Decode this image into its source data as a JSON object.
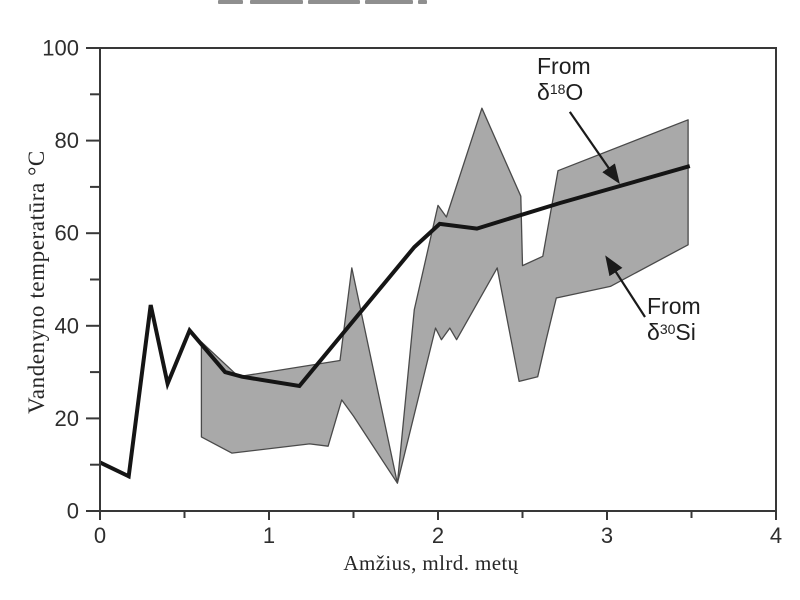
{
  "figure": {
    "y_axis_title": "Vandenyno temperatūra °C",
    "x_axis_title": "Amžius, mlrd. metų"
  },
  "annotations": {
    "o18": {
      "line1": "From",
      "delta": "δ",
      "sup": "18",
      "elem": "O"
    },
    "si30": {
      "line1": "From",
      "delta": "δ",
      "sup": "30",
      "elem": "Si"
    }
  },
  "chart_data": {
    "type": "area",
    "title": "",
    "xlabel": "Amžius, mlrd. metų",
    "ylabel": "Vandenyno temperatūra °C",
    "xlim": [
      0,
      4
    ],
    "ylim": [
      0,
      100
    ],
    "x_major_ticks": [
      0,
      1,
      2,
      3,
      4
    ],
    "x_minor_ticks": [
      0.5,
      1.5,
      2.5,
      3.5
    ],
    "y_major_ticks": [
      0,
      20,
      40,
      60,
      80,
      100
    ],
    "y_minor_ticks": [
      10,
      30,
      50,
      70,
      90
    ],
    "grid": false,
    "legend_position": "annotated-arrows",
    "series": [
      {
        "name": "From δ¹⁸O",
        "type": "line",
        "color": "#151515",
        "points": [
          [
            0.0,
            10.5
          ],
          [
            0.17,
            7.5
          ],
          [
            0.3,
            44.5
          ],
          [
            0.4,
            27.5
          ],
          [
            0.53,
            39.0
          ],
          [
            0.74,
            30.0
          ],
          [
            0.84,
            29.0
          ],
          [
            1.18,
            27.0
          ],
          [
            1.86,
            57.0
          ],
          [
            2.01,
            62.0
          ],
          [
            2.23,
            61.0
          ],
          [
            2.72,
            66.5
          ],
          [
            3.49,
            74.5
          ]
        ]
      },
      {
        "name": "From δ³⁰Si",
        "type": "band",
        "fill": "#a9a9a9",
        "outline": "#4a4a4a",
        "upper": [
          [
            0.6,
            36.5
          ],
          [
            0.82,
            29.0
          ],
          [
            1.42,
            32.5
          ],
          [
            1.49,
            52.5
          ],
          [
            1.76,
            6.0
          ],
          [
            1.86,
            43.5
          ],
          [
            2.0,
            66.0
          ],
          [
            2.05,
            63.5
          ],
          [
            2.26,
            87.0
          ],
          [
            2.49,
            68.0
          ],
          [
            2.5,
            53.0
          ],
          [
            2.62,
            55.0
          ],
          [
            2.71,
            73.5
          ],
          [
            3.48,
            84.5
          ]
        ],
        "lower": [
          [
            0.6,
            16.0
          ],
          [
            0.78,
            12.5
          ],
          [
            1.24,
            14.5
          ],
          [
            1.35,
            14.0
          ],
          [
            1.43,
            24.0
          ],
          [
            1.5,
            20.5
          ],
          [
            1.76,
            6.0
          ],
          [
            1.985,
            39.5
          ],
          [
            2.02,
            37.0
          ],
          [
            2.07,
            39.5
          ],
          [
            2.11,
            37.0
          ],
          [
            2.35,
            52.5
          ],
          [
            2.48,
            28.0
          ],
          [
            2.59,
            29.0
          ],
          [
            2.64,
            37.0
          ],
          [
            2.7,
            46.0
          ],
          [
            3.02,
            48.5
          ],
          [
            3.48,
            57.5
          ]
        ]
      }
    ],
    "arrows": [
      {
        "target": "From δ¹⁸O",
        "from": [
          2.78,
          86.2
        ],
        "to": [
          3.065,
          71.2
        ]
      },
      {
        "target": "From δ³⁰Si",
        "from": [
          3.225,
          41.9
        ],
        "to": [
          3.0,
          54.6
        ]
      }
    ]
  }
}
